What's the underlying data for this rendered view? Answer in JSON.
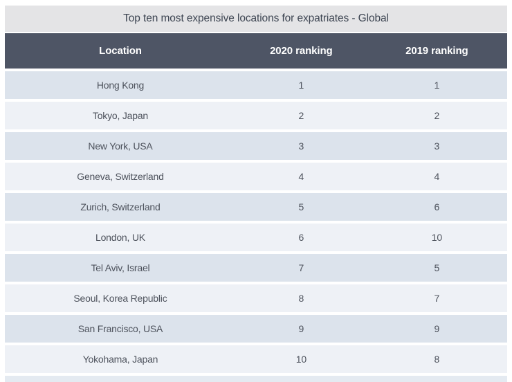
{
  "chart_data": {
    "type": "table",
    "title": "Top ten most expensive locations for expatriates - Global",
    "columns": [
      "Location",
      "2020 ranking",
      "2019 ranking"
    ],
    "rows": [
      [
        "Hong Kong",
        "1",
        "1"
      ],
      [
        "Tokyo, Japan",
        "2",
        "2"
      ],
      [
        "New York, USA",
        "3",
        "3"
      ],
      [
        "Geneva, Switzerland",
        "4",
        "4"
      ],
      [
        "Zurich, Switzerland",
        "5",
        "6"
      ],
      [
        "London, UK",
        "6",
        "10"
      ],
      [
        "Tel Aviv, Israel",
        "7",
        "5"
      ],
      [
        "Seoul, Korea Republic",
        "8",
        "7"
      ],
      [
        "San Francisco, USA",
        "9",
        "9"
      ],
      [
        "Yokohama, Japan",
        "10",
        "8"
      ]
    ],
    "legend": "none",
    "grid": "alternating-row-shading"
  },
  "colors": {
    "page_bg": "#ffffff",
    "title_bar_bg": "#e4e4e6",
    "title_text": "#3d4552",
    "header_bg": "#4e5565",
    "header_text": "#ffffff",
    "row_shade_dark": "#dce3ec",
    "row_shade_light": "#eef1f6",
    "row_text": "#4d525c",
    "bottom_strip_bg": "#e4eaf1"
  }
}
